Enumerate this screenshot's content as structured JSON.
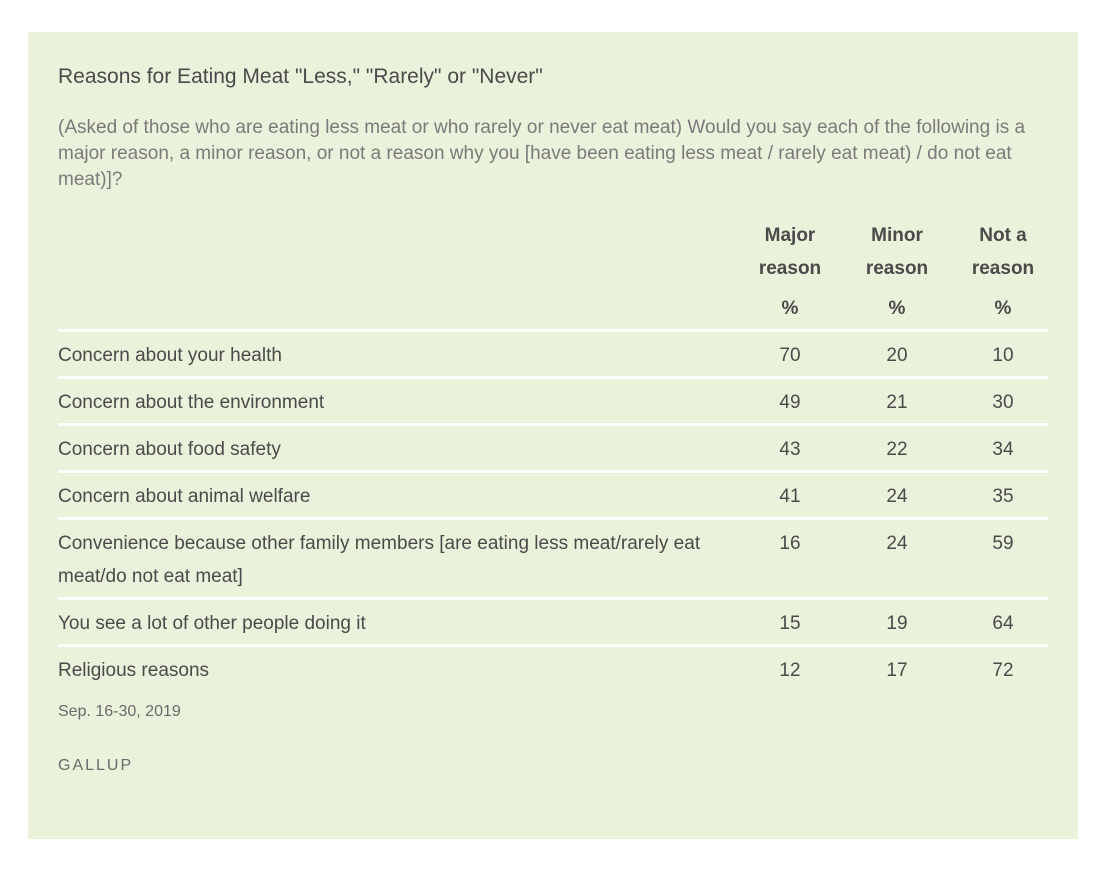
{
  "title": "Reasons for Eating Meat \"Less,\" \"Rarely\" or \"Never\"",
  "question": "(Asked of those who are eating less meat or who rarely or never eat meat) Would you say each of the following is a major reason, a minor reason, or not a reason why you [have been eating less meat / rarely eat meat) / do not eat meat)]?",
  "columns": [
    {
      "line1": "Major",
      "line2": "reason",
      "unit": "%"
    },
    {
      "line1": "Minor",
      "line2": "reason",
      "unit": "%"
    },
    {
      "line1": "Not a",
      "line2": "reason",
      "unit": "%"
    }
  ],
  "footer": {
    "date": "Sep. 16-30, 2019",
    "brand": "GALLUP"
  },
  "colors": {
    "background": "#ebf2dc",
    "divider": "#ffffff",
    "text": "#4a4a4a"
  },
  "chart_data": {
    "type": "table",
    "title": "Reasons for Eating Meat \"Less,\" \"Rarely\" or \"Never\"",
    "columns": [
      "Major reason",
      "Minor reason",
      "Not a reason"
    ],
    "unit": "%",
    "rows": [
      {
        "label": "Concern about your health",
        "values": [
          70,
          20,
          10
        ]
      },
      {
        "label": "Concern about the environment",
        "values": [
          49,
          21,
          30
        ]
      },
      {
        "label": "Concern about food safety",
        "values": [
          43,
          22,
          34
        ]
      },
      {
        "label": "Concern about animal welfare",
        "values": [
          41,
          24,
          35
        ]
      },
      {
        "label": "Convenience because other family members [are eating less meat/rarely eat meat/do not eat meat]",
        "values": [
          16,
          24,
          59
        ]
      },
      {
        "label": "You see a lot of other people doing it",
        "values": [
          15,
          19,
          64
        ]
      },
      {
        "label": "Religious reasons",
        "values": [
          12,
          17,
          72
        ]
      }
    ]
  }
}
